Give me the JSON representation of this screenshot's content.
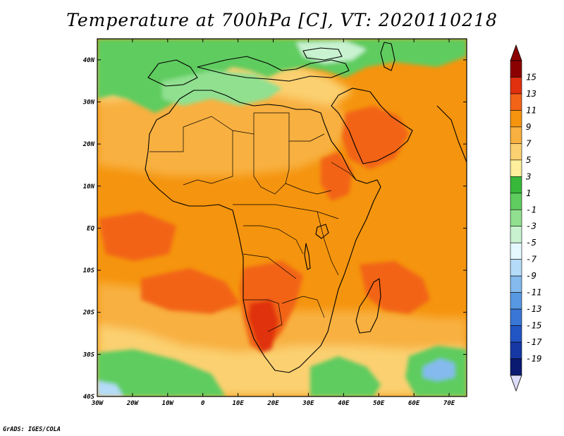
{
  "title": "Temperature at 700hPa [C], VT: 2020110218",
  "footer": "GrADS: IGES/COLA",
  "map": {
    "variable": "Temperature",
    "level": "700hPa",
    "units": "C",
    "valid_time": "2020110218",
    "lon_range": [
      -30,
      75
    ],
    "lat_range": [
      -40,
      45
    ],
    "lat_ticks": [
      {
        "value": 40,
        "label": "40N"
      },
      {
        "value": 30,
        "label": "30N"
      },
      {
        "value": 20,
        "label": "20N"
      },
      {
        "value": 10,
        "label": "10N"
      },
      {
        "value": 0,
        "label": "EQ"
      },
      {
        "value": -10,
        "label": "10S"
      },
      {
        "value": -20,
        "label": "20S"
      },
      {
        "value": -30,
        "label": "30S"
      },
      {
        "value": -40,
        "label": "40S"
      }
    ],
    "lon_ticks": [
      {
        "value": -30,
        "label": "30W"
      },
      {
        "value": -20,
        "label": "20W"
      },
      {
        "value": -10,
        "label": "10W"
      },
      {
        "value": 0,
        "label": "0"
      },
      {
        "value": 10,
        "label": "10E"
      },
      {
        "value": 20,
        "label": "20E"
      },
      {
        "value": 30,
        "label": "30E"
      },
      {
        "value": 40,
        "label": "40E"
      },
      {
        "value": 50,
        "label": "50E"
      },
      {
        "value": 60,
        "label": "60E"
      },
      {
        "value": 70,
        "label": "70E"
      }
    ]
  },
  "colorbar": {
    "labels": [
      "15",
      "13",
      "11",
      "9",
      "7",
      "5",
      "3",
      "1",
      "-1",
      "-3",
      "-5",
      "-7",
      "-9",
      "-11",
      "-13",
      "-15",
      "-17",
      "-19"
    ],
    "colors": [
      "#8b0000",
      "#e03010",
      "#f26318",
      "#f5940e",
      "#f8b040",
      "#fbd070",
      "#fdef9b",
      "#38b83a",
      "#5ecc5e",
      "#90e090",
      "#c8f2d0",
      "#e4f8ff",
      "#b4dcf8",
      "#84baee",
      "#5898e2",
      "#3a76d6",
      "#2255c4",
      "#1538a4",
      "#0a1a70"
    ],
    "under_color": "#ddddf8"
  },
  "theme": {
    "orange_base": "#f5940e",
    "warm_core": "#f26318",
    "hot_core": "#e03010",
    "yellow_warm": "#f8b040",
    "yellow_pale": "#fbd070",
    "cream": "#fdef9b",
    "green": "#5ecc5e",
    "green_dark": "#38b83a",
    "green_light": "#90e090",
    "cyan_pale": "#c8f2d0",
    "blue_pale": "#b4dcf8",
    "blue": "#84baee"
  }
}
